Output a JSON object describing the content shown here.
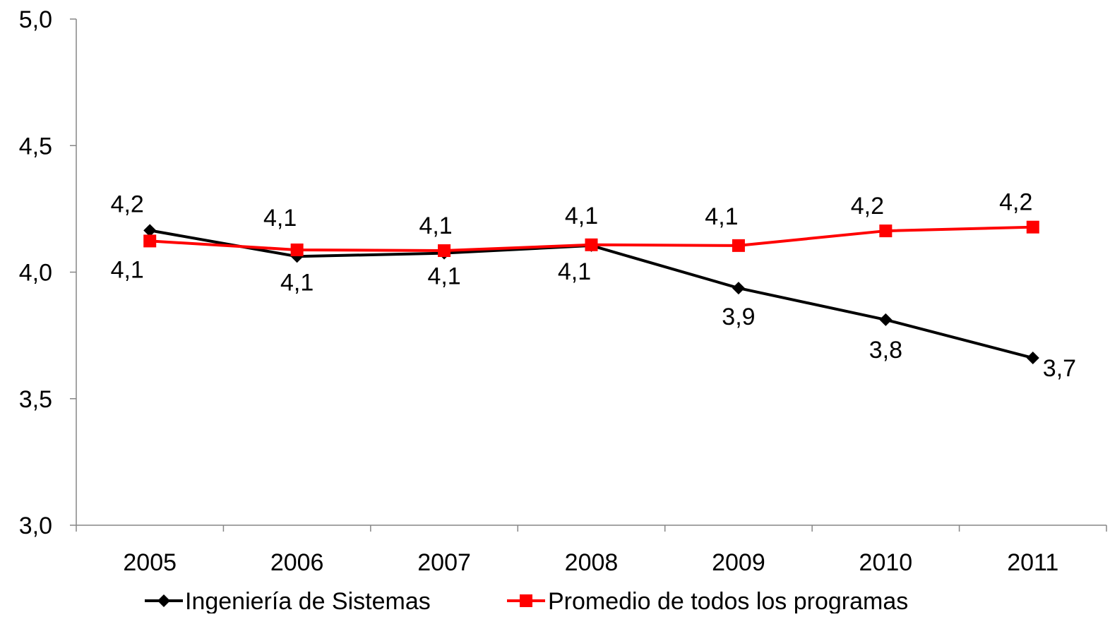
{
  "chart_data": {
    "type": "line",
    "title": "",
    "xlabel": "",
    "ylabel": "",
    "categories": [
      "2005",
      "2006",
      "2007",
      "2008",
      "2009",
      "2010",
      "2011"
    ],
    "ylim": [
      3.0,
      5.0
    ],
    "yticks": [
      3.0,
      3.5,
      4.0,
      4.5,
      5.0
    ],
    "ytick_labels": [
      "3,0",
      "3,5",
      "4,0",
      "4,5",
      "5,0"
    ],
    "grid": false,
    "legend_position": "bottom",
    "series": [
      {
        "name": "Ingeniería de Sistemas",
        "values": [
          4.165,
          4.062,
          4.075,
          4.105,
          3.937,
          3.812,
          3.661
        ],
        "data_labels": [
          "4,2",
          "4,1",
          "4,1",
          "4,1",
          "3,9",
          "3,8",
          "3,7"
        ],
        "color": "#000000",
        "marker": "diamond"
      },
      {
        "name": "Promedio de todos los programas",
        "values": [
          4.123,
          4.088,
          4.085,
          4.108,
          4.105,
          4.163,
          4.178
        ],
        "data_labels": [
          "4,1",
          "4,1",
          "4,1",
          "4,1",
          "4,1",
          "4,2",
          "4,2"
        ],
        "color": "#ff0000",
        "marker": "square"
      }
    ]
  }
}
